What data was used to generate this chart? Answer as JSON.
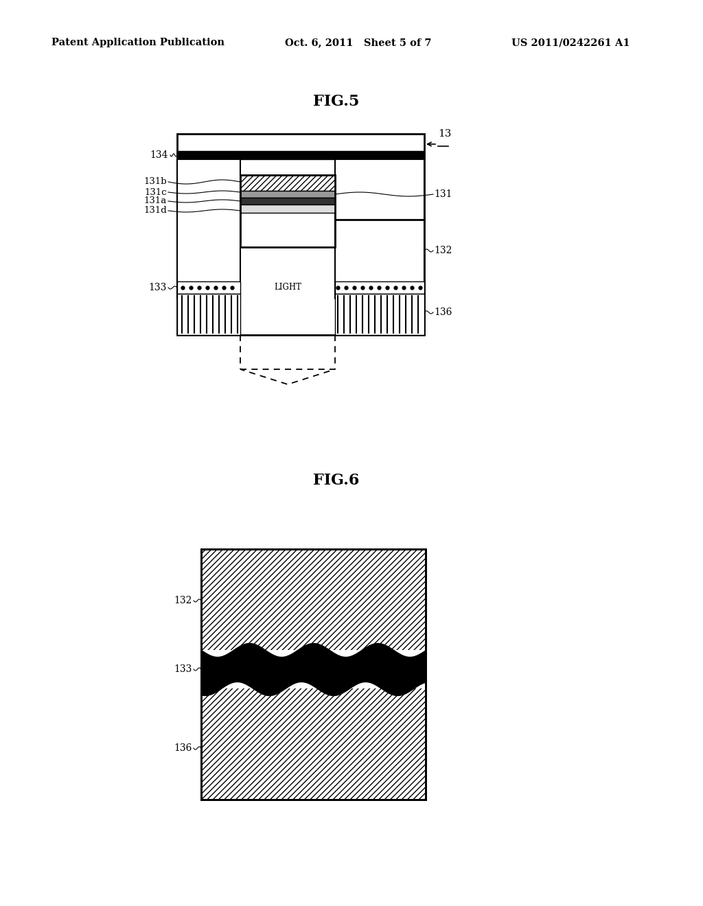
{
  "bg_color": "#ffffff",
  "header_left": "Patent Application Publication",
  "header_mid": "Oct. 6, 2011   Sheet 5 of 7",
  "header_right": "US 2011/0242261 A1",
  "fig5_title": "FIG.5",
  "fig6_title": "FIG.6",
  "label_13": "13",
  "label_134": "134",
  "label_131b": "131b",
  "label_131c": "131c",
  "label_131a": "131a",
  "label_131d": "131d",
  "label_131": "131",
  "label_132": "132",
  "label_133": "133",
  "label_136": "136",
  "label_light": "LIGHT"
}
